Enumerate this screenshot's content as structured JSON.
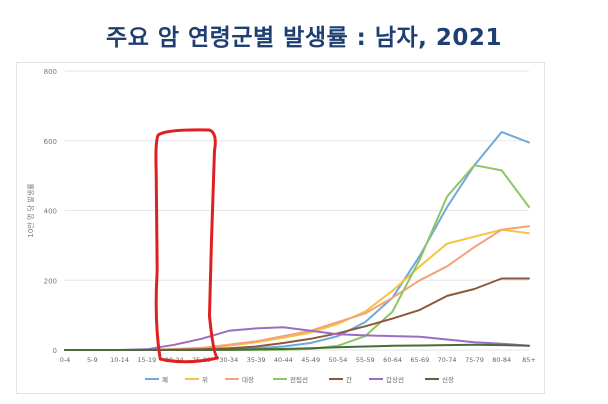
{
  "title": "주요 암 연령군별 발생률 : 남자, 2021",
  "chart_data": {
    "type": "line",
    "title": "주요 암 연령군별 발생률 : 남자, 2021",
    "ylabel": "10만 명 당 발생률",
    "xlabel": "",
    "ylim": [
      0,
      800
    ],
    "yticks": [
      0,
      200,
      400,
      600,
      800
    ],
    "grid": true,
    "legend_position": "bottom",
    "categories": [
      "0-4",
      "5-9",
      "10-14",
      "15-19",
      "20-24",
      "25-29",
      "30-34",
      "35-39",
      "40-44",
      "45-49",
      "50-54",
      "55-59",
      "60-64",
      "65-69",
      "70-74",
      "75-79",
      "80-84",
      "85+"
    ],
    "series": [
      {
        "name": "폐",
        "color": "#6fa8dc",
        "values": [
          0,
          0,
          0,
          0,
          1,
          1,
          2,
          5,
          10,
          20,
          40,
          80,
          150,
          270,
          410,
          530,
          625,
          595
        ]
      },
      {
        "name": "위",
        "color": "#f6c342",
        "values": [
          0,
          0,
          0,
          0,
          2,
          5,
          12,
          22,
          35,
          50,
          75,
          110,
          170,
          240,
          305,
          325,
          345,
          335
        ]
      },
      {
        "name": "대장",
        "color": "#f4a27a",
        "values": [
          0,
          0,
          0,
          0,
          3,
          6,
          15,
          25,
          40,
          55,
          80,
          105,
          150,
          200,
          240,
          295,
          345,
          355
        ]
      },
      {
        "name": "전립선",
        "color": "#8cc665",
        "values": [
          0,
          0,
          0,
          0,
          0,
          0,
          0,
          0,
          1,
          3,
          12,
          40,
          110,
          260,
          440,
          530,
          515,
          410
        ]
      },
      {
        "name": "간",
        "color": "#8b5a3c",
        "values": [
          0,
          0,
          0,
          0,
          1,
          2,
          5,
          10,
          20,
          32,
          48,
          68,
          90,
          115,
          155,
          175,
          205,
          205
        ]
      },
      {
        "name": "갑상선",
        "color": "#9b6cc4",
        "values": [
          0,
          0,
          0,
          2,
          15,
          32,
          55,
          62,
          65,
          55,
          45,
          42,
          40,
          38,
          30,
          22,
          18,
          12
        ]
      },
      {
        "name": "신장",
        "color": "#4a6b3a",
        "values": [
          0,
          0,
          0,
          0,
          0,
          0,
          1,
          2,
          3,
          5,
          8,
          10,
          12,
          13,
          14,
          15,
          14,
          12
        ]
      }
    ],
    "annotation": {
      "type": "hand-drawn-box",
      "color": "#e02020",
      "covers_categories": [
        "20-24",
        "25-29"
      ]
    }
  }
}
